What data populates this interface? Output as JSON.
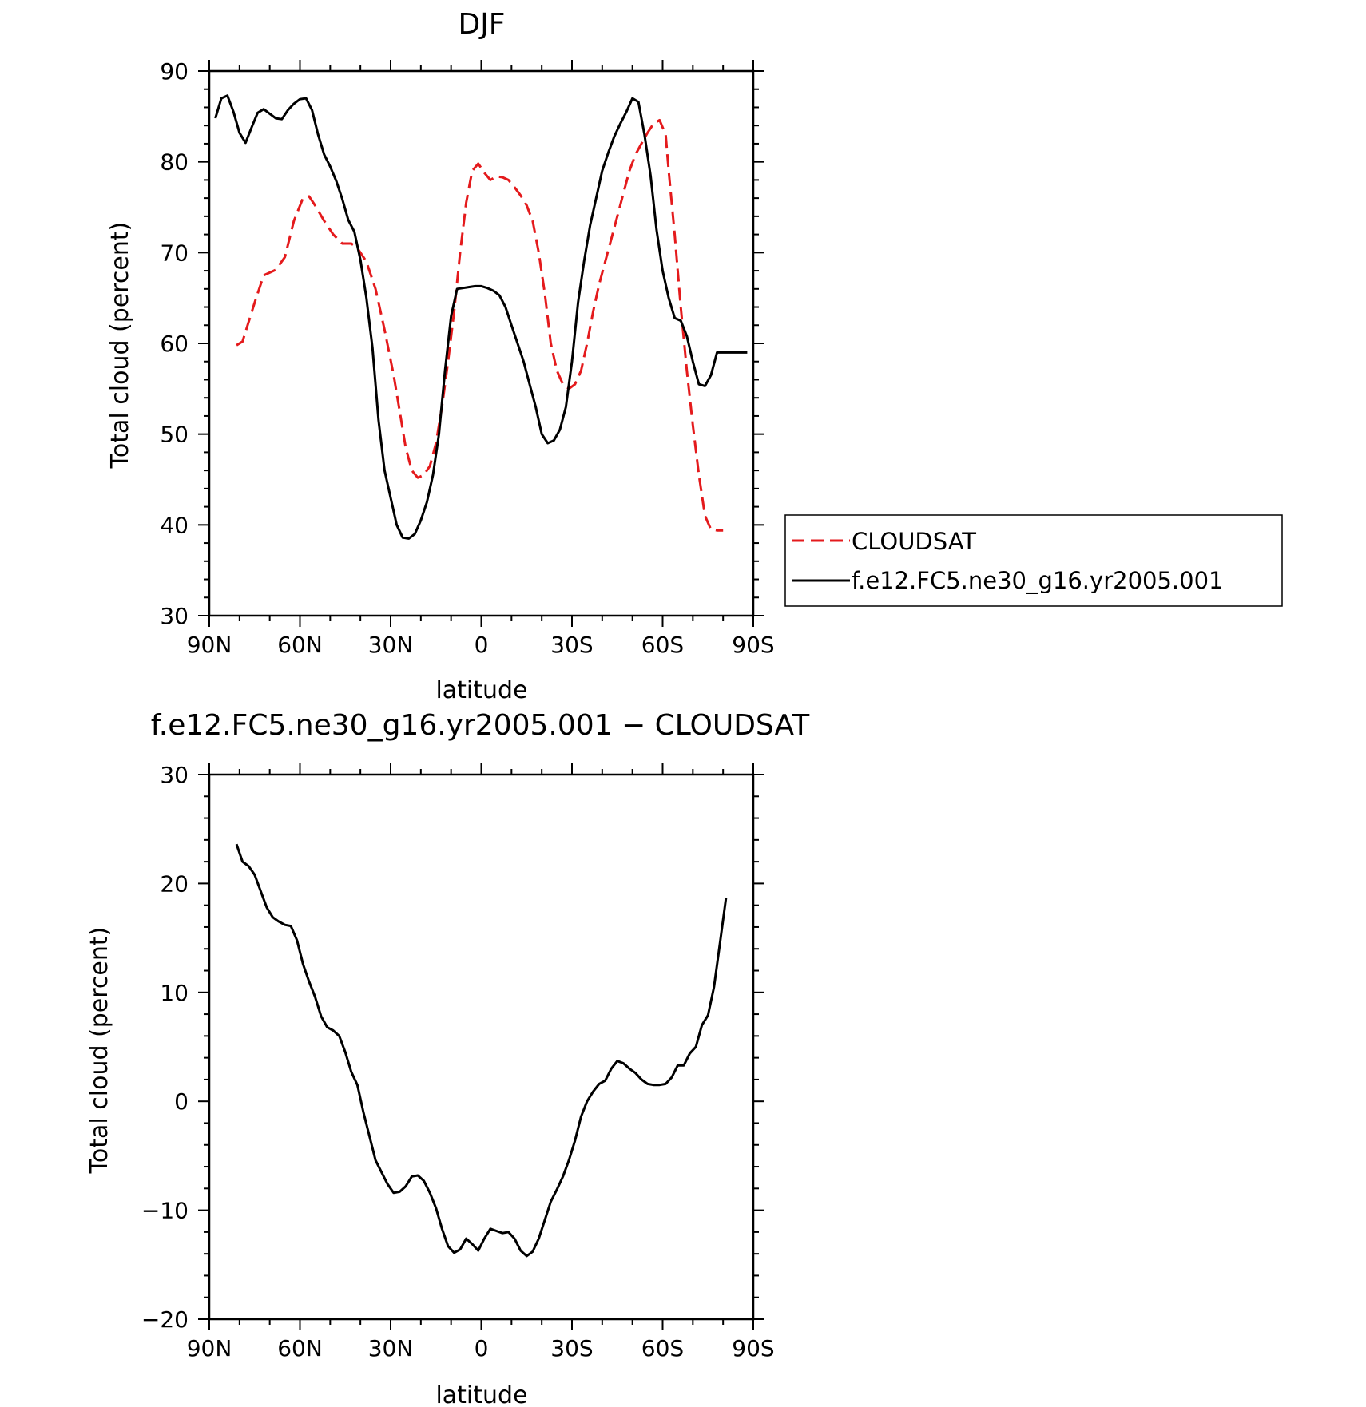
{
  "chart_data": [
    {
      "type": "line",
      "title": "DJF",
      "xlabel": "latitude",
      "ylabel": "Total cloud (percent)",
      "xlim": [
        90,
        -90
      ],
      "ylim": [
        30,
        90
      ],
      "xticks": [
        90,
        60,
        30,
        0,
        -30,
        -60,
        -90
      ],
      "xtick_labels": [
        "90N",
        "60N",
        "30N",
        "0",
        "30S",
        "60S",
        "90S"
      ],
      "yticks": [
        30,
        40,
        50,
        60,
        70,
        80,
        90
      ],
      "ytick_labels": [
        "30",
        "40",
        "50",
        "60",
        "70",
        "80",
        "90"
      ],
      "grid": false,
      "legend": "right",
      "series": [
        {
          "name": "CLOUDSAT",
          "color": "#e41a1c",
          "dash": "dashed",
          "x": [
            81,
            79,
            75,
            72,
            68,
            65,
            62,
            59,
            57,
            55,
            52,
            49,
            46,
            43,
            41,
            38,
            35,
            32,
            29,
            27,
            25,
            23,
            21,
            19,
            17,
            15,
            13,
            11,
            9,
            7,
            5,
            3,
            1,
            -1,
            -3,
            -5,
            -7,
            -9,
            -11,
            -13,
            -15,
            -17,
            -19,
            -21,
            -23,
            -25,
            -27,
            -29,
            -31,
            -33,
            -35,
            -37,
            -39,
            -41,
            -43,
            -45,
            -47,
            -49,
            -51,
            -53,
            -55,
            -57,
            -59,
            -61,
            -62,
            -64,
            -66,
            -68,
            -70,
            -72,
            -74,
            -76,
            -78,
            -80,
            -81
          ],
          "y": [
            59.8,
            60.2,
            64.5,
            67.5,
            68.1,
            69.5,
            73.5,
            76.0,
            76.2,
            75.2,
            73.5,
            72.0,
            71.0,
            71.0,
            70.5,
            69.0,
            66.0,
            61.5,
            56.5,
            52.5,
            48.5,
            46.0,
            45.2,
            45.5,
            46.5,
            49.0,
            53.0,
            58.0,
            63.5,
            70.0,
            75.5,
            79.0,
            79.8,
            78.8,
            78.0,
            78.4,
            78.3,
            78.0,
            77.2,
            76.3,
            75.2,
            73.5,
            70.0,
            65.5,
            60.0,
            57.0,
            55.5,
            55.0,
            55.5,
            57.0,
            60.0,
            63.5,
            66.5,
            69.0,
            71.5,
            74.0,
            76.5,
            79.0,
            80.8,
            82.0,
            83.2,
            84.2,
            84.6,
            83.0,
            79.0,
            72.0,
            64.0,
            57.0,
            51.0,
            45.5,
            41.0,
            39.5,
            39.4,
            39.4,
            39.5
          ],
          "x_trim": [
            81,
            79,
            75,
            72,
            68,
            65,
            62,
            59,
            57,
            55,
            52,
            49,
            46,
            43,
            41,
            38,
            35,
            32,
            29,
            27,
            25,
            23,
            21,
            19,
            17,
            15,
            13,
            11,
            9,
            7,
            5,
            3,
            1,
            -1,
            -3,
            -5,
            -7,
            -9,
            -11,
            -13,
            -15,
            -17,
            -19,
            -21,
            -23,
            -25,
            -27,
            -29,
            -31,
            -33,
            -35,
            -37,
            -39,
            -41,
            -43,
            -45,
            -47,
            -49,
            -51,
            -53,
            -55,
            -57,
            -59,
            -61,
            -62,
            -64,
            -66,
            -68,
            -70,
            -72,
            -74,
            -76,
            -78,
            -80
          ],
          "y_trim": [
            59.8,
            60.2,
            64.5,
            67.5,
            68.1,
            69.5,
            73.5,
            76.0,
            76.2,
            75.2,
            73.5,
            72.0,
            71.0,
            71.0,
            70.5,
            69.0,
            66.0,
            61.5,
            56.5,
            52.5,
            48.5,
            46.0,
            45.2,
            45.5,
            46.5,
            49.0,
            53.0,
            58.0,
            63.5,
            70.0,
            75.5,
            79.0,
            79.8,
            78.8,
            78.0,
            78.4,
            78.3,
            78.0,
            77.2,
            76.3,
            75.2,
            73.5,
            70.0,
            65.5,
            60.0,
            57.0,
            55.5,
            55.0,
            55.5,
            57.0,
            60.0,
            63.5,
            66.5,
            69.0,
            71.5,
            74.0,
            76.5,
            79.0,
            80.8,
            82.0,
            83.2,
            84.2,
            84.6,
            83.0,
            79.0,
            72.0,
            64.0,
            57.0,
            51.0,
            45.5,
            41.0,
            39.5,
            39.4,
            39.4
          ]
        },
        {
          "name": "f.e12.FC5.ne30_g16.yr2005.001",
          "color": "#000000",
          "dash": "solid",
          "x": [
            88,
            86,
            84,
            82,
            80,
            78,
            76,
            74,
            72,
            70,
            68,
            66,
            64,
            62,
            60,
            58,
            56,
            54,
            52,
            50,
            48,
            46,
            44,
            42,
            40,
            38,
            36,
            34,
            32,
            30,
            28,
            26,
            24,
            22,
            20,
            18,
            16,
            14,
            12,
            10,
            8,
            6,
            4,
            2,
            0,
            -2,
            -4,
            -6,
            -8,
            -10,
            -12,
            -14,
            -16,
            -18,
            -20,
            -22,
            -24,
            -26,
            -28,
            -30,
            -32,
            -34,
            -36,
            -38,
            -40,
            -42,
            -44,
            -46,
            -48,
            -50,
            -52,
            -54,
            -56,
            -58,
            -60,
            -62,
            -64,
            -66,
            -68,
            -70,
            -72,
            -74,
            -76,
            -78,
            -80,
            -82,
            -84,
            -86,
            -88
          ],
          "y": [
            84.8,
            87.0,
            87.3,
            85.5,
            83.2,
            82.1,
            83.8,
            85.4,
            85.8,
            85.3,
            84.8,
            84.7,
            85.7,
            86.4,
            86.9,
            87.0,
            85.7,
            83.0,
            80.8,
            79.5,
            77.9,
            75.9,
            73.6,
            72.3,
            69.2,
            65.0,
            59.5,
            51.5,
            46.0,
            43.0,
            40.0,
            38.6,
            38.5,
            39.0,
            40.5,
            42.5,
            45.5,
            50.0,
            57.0,
            63.0,
            66.0,
            66.1,
            66.2,
            66.3,
            66.3,
            66.1,
            65.8,
            65.3,
            64.0,
            62.0,
            60.0,
            58.0,
            55.5,
            53.0,
            50.0,
            49.0,
            49.3,
            50.5,
            53.0,
            58.0,
            64.5,
            69.0,
            73.0,
            76.0,
            79.0,
            81.0,
            82.8,
            84.2,
            85.5,
            87.0,
            86.6,
            83.0,
            78.5,
            72.5,
            68.0,
            65.0,
            62.8,
            62.5,
            60.8,
            58.0,
            55.5,
            55.3,
            56.5,
            59.0,
            59.0,
            59.0,
            59.0,
            59.0,
            59.0
          ],
          "x_trim": [
            88,
            86,
            84,
            82,
            80,
            78,
            76,
            74,
            72,
            70,
            68,
            66,
            64,
            62,
            60,
            58,
            56,
            54,
            52,
            50,
            48,
            46,
            44,
            42,
            40,
            38,
            36,
            34,
            32,
            30,
            28,
            26,
            24,
            22,
            20,
            18,
            16,
            14,
            12,
            10,
            8,
            6,
            4,
            2,
            0,
            -2,
            -4,
            -6,
            -8,
            -10,
            -12,
            -14,
            -16,
            -18,
            -20,
            -22,
            -24,
            -26,
            -28,
            -30,
            -32,
            -34,
            -36,
            -38,
            -40,
            -42,
            -44,
            -46,
            -48,
            -50,
            -52,
            -54,
            -56,
            -58,
            -60,
            -62,
            -64,
            -66,
            -68,
            -70,
            -72,
            -74,
            -76,
            -78,
            -80,
            -82,
            -84,
            -86,
            -88
          ]
        }
      ]
    },
    {
      "type": "line",
      "title": "f.e12.FC5.ne30_g16.yr2005.001 − CLOUDSAT",
      "xlabel": "latitude",
      "ylabel": "Total cloud (percent)",
      "xlim": [
        90,
        -90
      ],
      "ylim": [
        -20,
        30
      ],
      "xticks": [
        90,
        60,
        30,
        0,
        -30,
        -60,
        -90
      ],
      "xtick_labels": [
        "90N",
        "60N",
        "30N",
        "0",
        "30S",
        "60S",
        "90S"
      ],
      "yticks": [
        -20,
        -10,
        0,
        10,
        20,
        30
      ],
      "ytick_labels": [
        "−20",
        "−10",
        "0",
        "10",
        "20",
        "30"
      ],
      "grid": false,
      "series": [
        {
          "color": "#000000",
          "dash": "solid",
          "x": [
            81,
            79,
            77,
            75,
            73,
            71,
            69,
            67,
            65,
            63,
            61,
            59,
            57,
            55,
            53,
            51,
            49,
            47,
            45,
            43,
            41,
            39,
            37,
            35,
            33,
            31,
            29,
            27,
            25,
            23,
            21,
            19,
            17,
            15,
            13,
            11,
            9,
            7,
            5,
            3,
            1,
            -1,
            -3,
            -5,
            -7,
            -9,
            -11,
            -13,
            -15,
            -17,
            -19,
            -21,
            -23,
            -25,
            -27,
            -29,
            -31,
            -33,
            -35,
            -37,
            -39,
            -41,
            -43,
            -45,
            -47,
            -49,
            -51,
            -53,
            -55,
            -57,
            -59,
            -61,
            -63,
            -65,
            -67,
            -69,
            -71,
            -73,
            -75,
            -77,
            -79,
            -81
          ],
          "y": [
            23.6,
            22.0,
            21.6,
            20.8,
            19.3,
            17.8,
            16.9,
            16.5,
            16.2,
            16.1,
            14.8,
            12.6,
            11.0,
            9.6,
            7.8,
            6.8,
            6.5,
            6.0,
            4.5,
            2.7,
            1.5,
            -1.0,
            -3.2,
            -5.4,
            -6.5,
            -7.6,
            -8.4,
            -8.3,
            -7.8,
            -6.9,
            -6.8,
            -7.3,
            -8.4,
            -9.8,
            -11.7,
            -13.3,
            -13.9,
            -13.6,
            -12.6,
            -13.1,
            -13.7,
            -12.6,
            -11.7,
            -11.9,
            -12.1,
            -12.0,
            -12.6,
            -13.7,
            -14.2,
            -13.8,
            -12.6,
            -10.9,
            -9.2,
            -8.1,
            -6.9,
            -5.4,
            -3.6,
            -1.4,
            0.0,
            0.9,
            1.6,
            1.9,
            3.0,
            3.7,
            3.5,
            3.0,
            2.6,
            2.0,
            1.6,
            1.5,
            1.5,
            1.6,
            2.2,
            3.3,
            3.3,
            4.4,
            5.0,
            7.0,
            7.9,
            10.5,
            14.6,
            18.7
          ]
        }
      ]
    }
  ]
}
